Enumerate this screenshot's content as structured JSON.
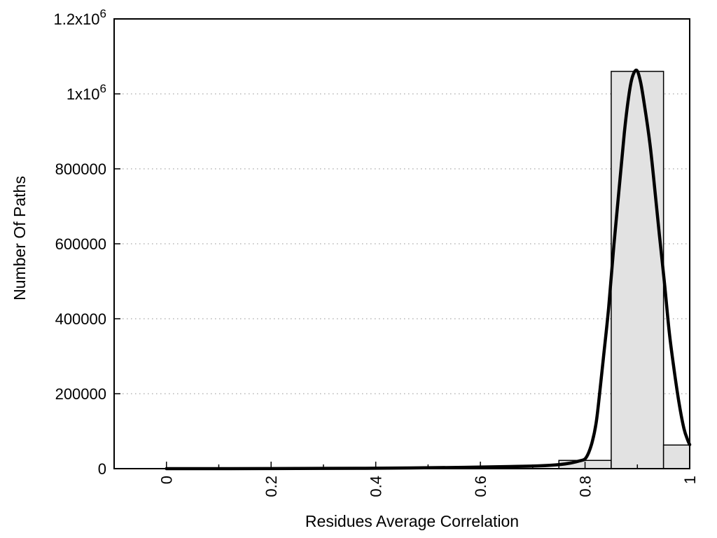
{
  "figure": {
    "background": "#ffffff"
  },
  "chart_data": {
    "type": "bar",
    "subtype": "histogram-with-fit-curve",
    "title": "",
    "xlabel": "Residues Average Correlation",
    "ylabel": "Number Of Paths",
    "xlim": [
      -0.1,
      1.0
    ],
    "ylim": [
      0,
      1200000
    ],
    "grid": {
      "horizontal": true,
      "vertical": false,
      "style": "dotted"
    },
    "legend": null,
    "x_ticks": {
      "major": [
        0,
        0.2,
        0.4,
        0.6,
        0.8,
        1
      ],
      "labels": [
        "0",
        "0.2",
        "0.4",
        "0.6",
        "0.8",
        "1"
      ],
      "minor": [
        0.1,
        0.3,
        0.5,
        0.7,
        0.9
      ],
      "label_rotation_deg": -90
    },
    "y_ticks": [
      {
        "value": 0,
        "label": "0"
      },
      {
        "value": 200000,
        "label": "200000"
      },
      {
        "value": 400000,
        "label": "400000"
      },
      {
        "value": 600000,
        "label": "600000"
      },
      {
        "value": 800000,
        "label": "800000"
      },
      {
        "value": 1000000,
        "label": "1x10^6"
      },
      {
        "value": 1200000,
        "label": "1.2x10^6"
      }
    ],
    "bars": [
      {
        "x0": 0.75,
        "x1": 0.85,
        "count": 22000
      },
      {
        "x0": 0.85,
        "x1": 0.95,
        "count": 1060000
      },
      {
        "x0": 0.95,
        "x1": 1.0,
        "count": 63000
      }
    ],
    "fit_curve": {
      "name": "gaussian-like-fit",
      "points": [
        [
          0.0,
          0
        ],
        [
          0.12,
          0
        ],
        [
          0.25,
          500
        ],
        [
          0.38,
          1000
        ],
        [
          0.48,
          2000
        ],
        [
          0.57,
          3500
        ],
        [
          0.645,
          5500
        ],
        [
          0.712,
          7500
        ],
        [
          0.752,
          11000
        ],
        [
          0.772,
          15000
        ],
        [
          0.79,
          21000
        ],
        [
          0.8,
          26000
        ],
        [
          0.807,
          43000
        ],
        [
          0.814,
          73000
        ],
        [
          0.821,
          120000
        ],
        [
          0.827,
          189000
        ],
        [
          0.835,
          294000
        ],
        [
          0.845,
          428000
        ],
        [
          0.855,
          593000
        ],
        [
          0.866,
          761000
        ],
        [
          0.875,
          895000
        ],
        [
          0.883,
          989000
        ],
        [
          0.89,
          1043000
        ],
        [
          0.8985,
          1063000
        ],
        [
          0.906,
          1032000
        ],
        [
          0.914,
          966000
        ],
        [
          0.924,
          867000
        ],
        [
          0.933,
          750000
        ],
        [
          0.942,
          624000
        ],
        [
          0.952,
          493000
        ],
        [
          0.961,
          363000
        ],
        [
          0.971,
          256000
        ],
        [
          0.98,
          172000
        ],
        [
          0.989,
          107000
        ],
        [
          0.996,
          77000
        ],
        [
          1.0,
          64000
        ]
      ]
    },
    "colors": {
      "background": "#ffffff",
      "bar_fill": "#e2e2e2",
      "bar_border": "#000000",
      "curve": "#000000",
      "axis": "#000000",
      "grid": "#a8a8a8",
      "text": "#000000"
    }
  }
}
